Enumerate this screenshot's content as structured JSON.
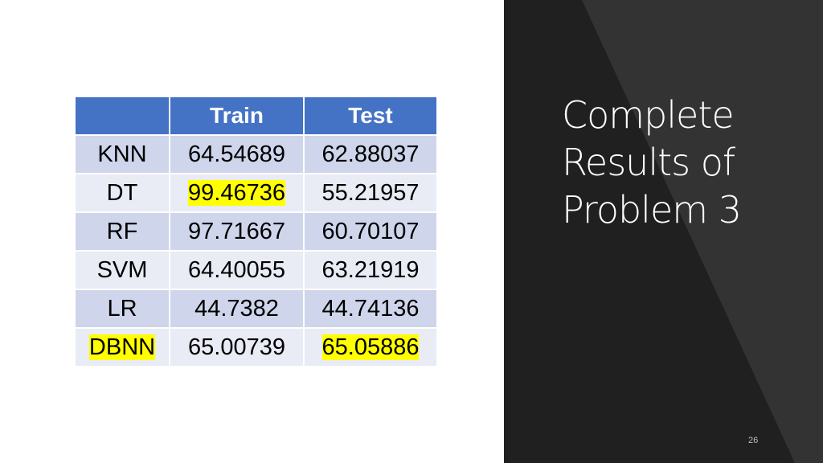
{
  "slide": {
    "title_lines": [
      "Complete",
      "Results of",
      "Problem 3"
    ],
    "page_number": "26",
    "panel_color": "#202020",
    "highlight_color": "#ffff00"
  },
  "table": {
    "headers": [
      "",
      "Train",
      "Test"
    ],
    "rows": [
      {
        "model": "KNN",
        "train": "64.54689",
        "test": "62.88037",
        "highlight": []
      },
      {
        "model": "DT",
        "train": "99.46736",
        "test": "55.21957",
        "highlight": [
          "train"
        ]
      },
      {
        "model": "RF",
        "train": "97.71667",
        "test": "60.70107",
        "highlight": []
      },
      {
        "model": "SVM",
        "train": "64.40055",
        "test": "63.21919",
        "highlight": []
      },
      {
        "model": "LR",
        "train": "44.7382",
        "test": "44.74136",
        "highlight": []
      },
      {
        "model": "DBNN",
        "train": "65.00739",
        "test": "65.05886",
        "highlight": [
          "model",
          "test"
        ]
      }
    ]
  }
}
